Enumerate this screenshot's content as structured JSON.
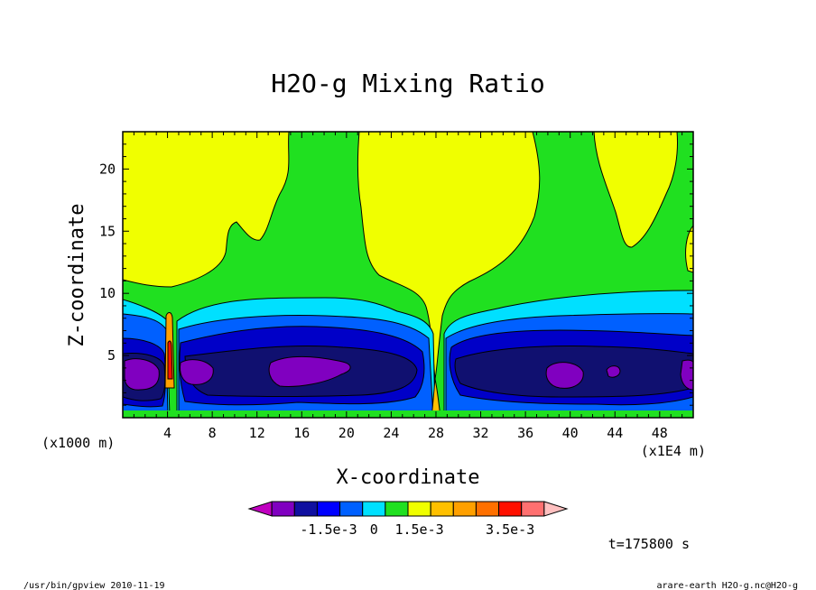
{
  "chart_data": {
    "type": "heatmap",
    "title": "H2O-g Mixing Ratio",
    "xlabel": "X-coordinate",
    "ylabel": "Z-coordinate",
    "x_unit_left": "(x1000 m)",
    "x_unit_right": "(x1E4 m)",
    "xlim": [
      0,
      51
    ],
    "ylim": [
      0,
      23
    ],
    "x_ticks": [
      4,
      8,
      12,
      16,
      20,
      24,
      28,
      32,
      36,
      40,
      44,
      48
    ],
    "y_ticks": [
      5,
      10,
      15,
      20
    ],
    "colorbar": {
      "colors": [
        "#c000c0",
        "#8000c0",
        "#1010a0",
        "#0000ff",
        "#0060ff",
        "#00e0ff",
        "#20e020",
        "#f0ff00",
        "#ffc000",
        "#ffa000",
        "#ff7000",
        "#ff1000",
        "#ff7070",
        "#ffc0c0"
      ],
      "tick_labels": [
        "-1.5e-3",
        "0",
        "1.5e-3",
        "3.5e-3"
      ]
    },
    "time_label": "t=175800 s",
    "footer_left": "/usr/bin/gpview  2010-11-19",
    "footer_right": "arare-earth_H2O-g.nc@H2O-g"
  }
}
